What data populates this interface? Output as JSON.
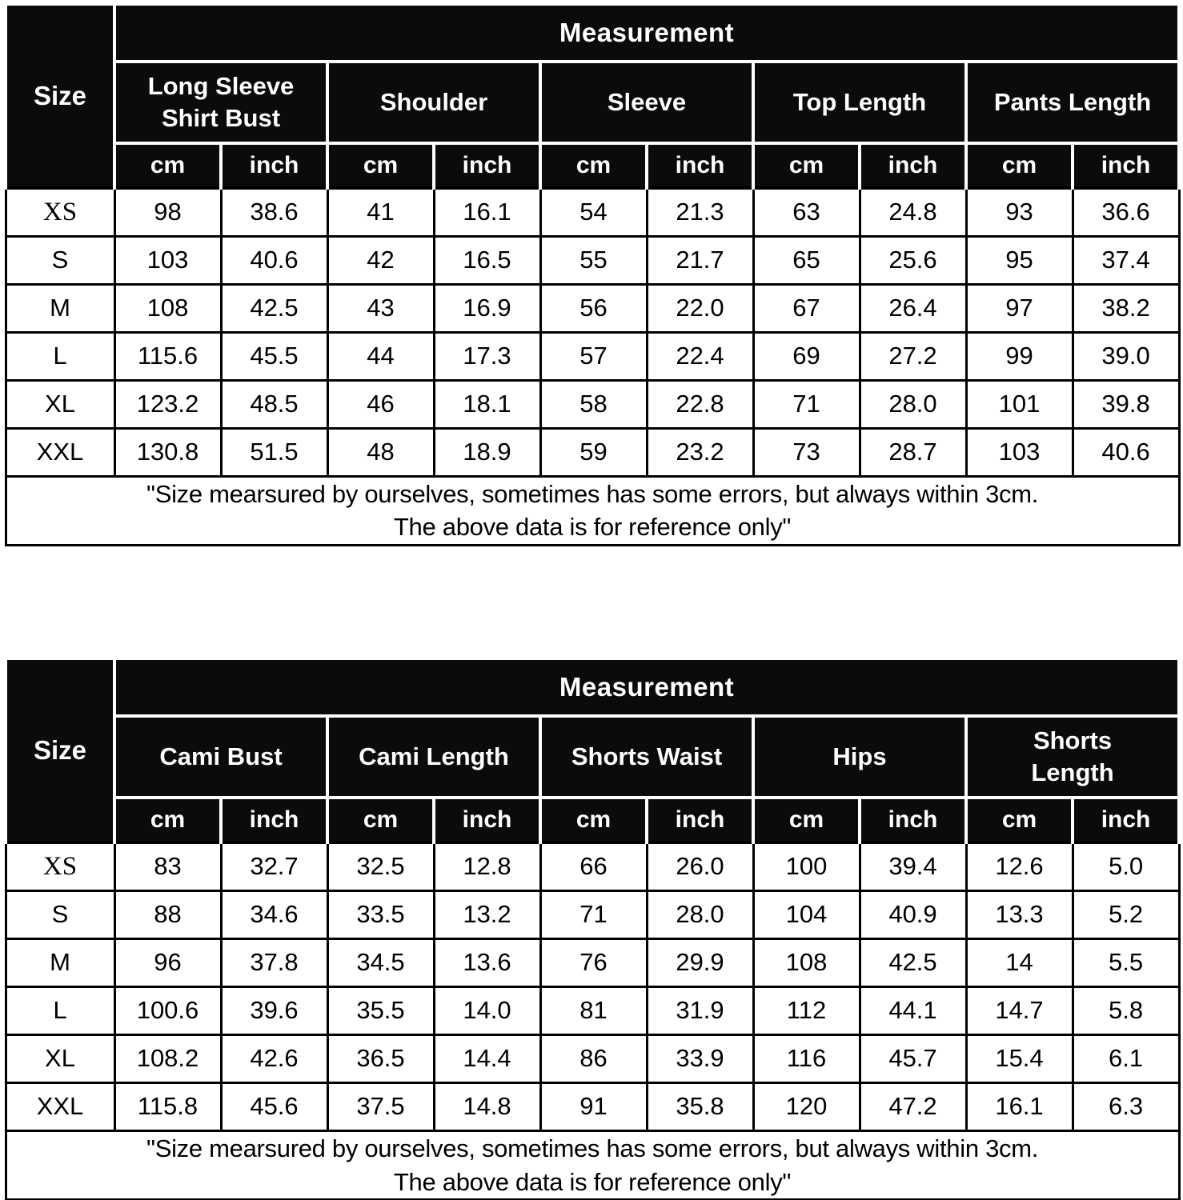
{
  "tables": [
    {
      "size_label": "Size",
      "measurement_label": "Measurement",
      "unit_labels": [
        "cm",
        "inch"
      ],
      "groups": [
        "Long Sleeve\nShirt Bust",
        "Shoulder",
        "Sleeve",
        "Top Length",
        "Pants Length"
      ],
      "rows": [
        {
          "size": "XS",
          "values": [
            "98",
            "38.6",
            "41",
            "16.1",
            "54",
            "21.3",
            "63",
            "24.8",
            "93",
            "36.6"
          ]
        },
        {
          "size": "S",
          "values": [
            "103",
            "40.6",
            "42",
            "16.5",
            "55",
            "21.7",
            "65",
            "25.6",
            "95",
            "37.4"
          ]
        },
        {
          "size": "M",
          "values": [
            "108",
            "42.5",
            "43",
            "16.9",
            "56",
            "22.0",
            "67",
            "26.4",
            "97",
            "38.2"
          ]
        },
        {
          "size": "L",
          "values": [
            "115.6",
            "45.5",
            "44",
            "17.3",
            "57",
            "22.4",
            "69",
            "27.2",
            "99",
            "39.0"
          ]
        },
        {
          "size": "XL",
          "values": [
            "123.2",
            "48.5",
            "46",
            "18.1",
            "58",
            "22.8",
            "71",
            "28.0",
            "101",
            "39.8"
          ]
        },
        {
          "size": "XXL",
          "values": [
            "130.8",
            "51.5",
            "48",
            "18.9",
            "59",
            "23.2",
            "73",
            "28.7",
            "103",
            "40.6"
          ]
        }
      ],
      "note_line1": "\"Size mearsured by ourselves, sometimes has some errors, but always within 3cm.",
      "note_line2": "The above data is for reference only\""
    },
    {
      "size_label": "Size",
      "measurement_label": "Measurement",
      "unit_labels": [
        "cm",
        "inch"
      ],
      "groups": [
        "Cami Bust",
        "Cami Length",
        "Shorts Waist",
        "Hips",
        "Shorts\nLength"
      ],
      "rows": [
        {
          "size": "XS",
          "values": [
            "83",
            "32.7",
            "32.5",
            "12.8",
            "66",
            "26.0",
            "100",
            "39.4",
            "12.6",
            "5.0"
          ]
        },
        {
          "size": "S",
          "values": [
            "88",
            "34.6",
            "33.5",
            "13.2",
            "71",
            "28.0",
            "104",
            "40.9",
            "13.3",
            "5.2"
          ]
        },
        {
          "size": "M",
          "values": [
            "96",
            "37.8",
            "34.5",
            "13.6",
            "76",
            "29.9",
            "108",
            "42.5",
            "14",
            "5.5"
          ]
        },
        {
          "size": "L",
          "values": [
            "100.6",
            "39.6",
            "35.5",
            "14.0",
            "81",
            "31.9",
            "112",
            "44.1",
            "14.7",
            "5.8"
          ]
        },
        {
          "size": "XL",
          "values": [
            "108.2",
            "42.6",
            "36.5",
            "14.4",
            "86",
            "33.9",
            "116",
            "45.7",
            "15.4",
            "6.1"
          ]
        },
        {
          "size": "XXL",
          "values": [
            "115.8",
            "45.6",
            "37.5",
            "14.8",
            "91",
            "35.8",
            "120",
            "47.2",
            "16.1",
            "6.3"
          ]
        }
      ],
      "note_line1": "\"Size mearsured by ourselves, sometimes has some errors, but always within 3cm.",
      "note_line2": "The above data is for reference only\""
    }
  ]
}
